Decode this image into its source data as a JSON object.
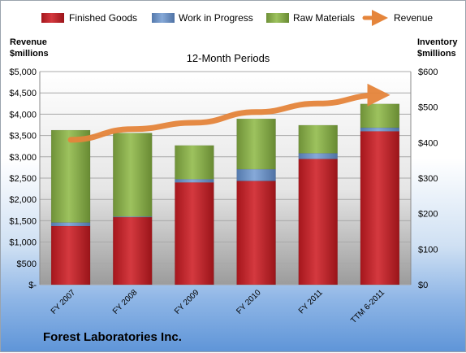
{
  "chart_data": {
    "type": "bar",
    "stacked": true,
    "title": "12-Month Periods",
    "company": "Forest Laboratories Inc.",
    "categories": [
      "FY 2007",
      "FY 2008",
      "FY 2009",
      "FY 2010",
      "FY 2011",
      "TTM 6-2011"
    ],
    "ylabel_left": [
      "Revenue",
      "$millions"
    ],
    "ylabel_right": [
      "Inventory",
      "$millions"
    ],
    "ylim_left": [
      0,
      5000
    ],
    "ylim_right": [
      0,
      600
    ],
    "yticks_left": [
      "$-",
      "$500",
      "$1,000",
      "$1,500",
      "$2,000",
      "$2,500",
      "$3,000",
      "$3,500",
      "$4,000",
      "$4,500",
      "$5,000"
    ],
    "yticks_right": [
      "$0",
      "$100",
      "$200",
      "$300",
      "$400",
      "$500",
      "$600"
    ],
    "grid": true,
    "legend_position": "top",
    "series": [
      {
        "name": "Finished Goods",
        "axis": "right",
        "color": "#c0272d",
        "values": [
          165,
          190,
          288,
          292,
          354,
          432
        ]
      },
      {
        "name": "Work in Progress",
        "axis": "right",
        "color": "#6e95c8",
        "values": [
          10,
          2,
          9,
          33,
          16,
          10
        ]
      },
      {
        "name": "Raw Materials",
        "axis": "right",
        "color": "#8db250",
        "values": [
          260,
          235,
          95,
          142,
          79,
          67
        ]
      },
      {
        "name": "Revenue",
        "axis": "left",
        "type": "line",
        "color": "#e5853b",
        "values": [
          3400,
          3650,
          3800,
          4050,
          4250,
          4450
        ]
      }
    ]
  }
}
